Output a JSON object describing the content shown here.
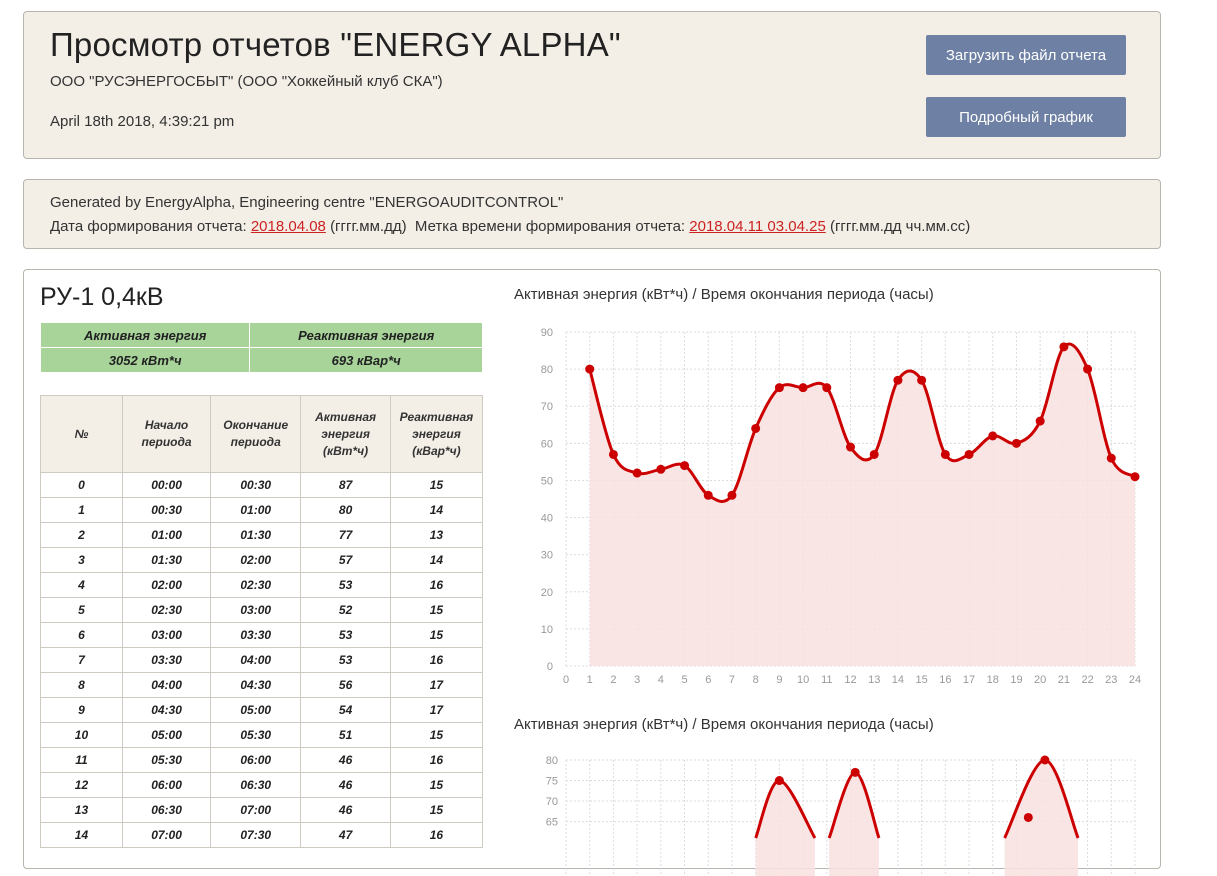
{
  "header": {
    "title": "Просмотр отчетов \"ENERGY ALPHA\"",
    "org": "ООО \"РУСЭНЕРГОСБЫТ\" (ООО \"Хоккейный клуб СКА\")",
    "date": "April 18th 2018, 4:39:21 pm",
    "upload_label": "Загрузить файл отчета",
    "detail_label": "Подробный график"
  },
  "info": {
    "generated": "Generated by EnergyAlpha, Engineering centre \"ENERGOAUDITCONTROL\"",
    "date_label": "Дата формирования отчета:",
    "date_value": "2018.04.08",
    "date_format": "(гггг.мм.дд)",
    "timestamp_label": "Метка времени формирования отчета:",
    "timestamp_value": "2018.04.11 03.04.25",
    "timestamp_format": "(гггг.мм.дд чч.мм.сс)"
  },
  "section": {
    "title": "РУ-1 0,4кВ",
    "summary": {
      "active_label": "Активная энергия",
      "reactive_label": "Реактивная энергия",
      "active_value": "3052 кВт*ч",
      "reactive_value": "693 кВар*ч"
    }
  },
  "table": {
    "headers": [
      "№",
      "Начало периода",
      "Окончание периода",
      "Активная энергия (кВт*ч)",
      "Реактивная энергия (кВар*ч)"
    ],
    "rows": [
      [
        "0",
        "00:00",
        "00:30",
        "87",
        "15"
      ],
      [
        "1",
        "00:30",
        "01:00",
        "80",
        "14"
      ],
      [
        "2",
        "01:00",
        "01:30",
        "77",
        "13"
      ],
      [
        "3",
        "01:30",
        "02:00",
        "57",
        "14"
      ],
      [
        "4",
        "02:00",
        "02:30",
        "53",
        "16"
      ],
      [
        "5",
        "02:30",
        "03:00",
        "52",
        "15"
      ],
      [
        "6",
        "03:00",
        "03:30",
        "53",
        "15"
      ],
      [
        "7",
        "03:30",
        "04:00",
        "53",
        "16"
      ],
      [
        "8",
        "04:00",
        "04:30",
        "56",
        "17"
      ],
      [
        "9",
        "04:30",
        "05:00",
        "54",
        "17"
      ],
      [
        "10",
        "05:00",
        "05:30",
        "51",
        "15"
      ],
      [
        "11",
        "05:30",
        "06:00",
        "46",
        "16"
      ],
      [
        "12",
        "06:00",
        "06:30",
        "46",
        "15"
      ],
      [
        "13",
        "06:30",
        "07:00",
        "46",
        "15"
      ],
      [
        "14",
        "07:00",
        "07:30",
        "47",
        "16"
      ]
    ]
  },
  "colors": {
    "line": "#cc0000",
    "fill": "#f9e0e0",
    "button": "#6e80a4",
    "summary_bg": "#a8d49a",
    "link": "#cc2222"
  },
  "chart_data": [
    {
      "type": "area",
      "title": "Активная энергия (кВт*ч) / Время окончания периода (часы)",
      "x": [
        1,
        2,
        3,
        4,
        5,
        6,
        7,
        8,
        9,
        10,
        11,
        12,
        13,
        14,
        15,
        16,
        17,
        18,
        19,
        20,
        21,
        22,
        23,
        24
      ],
      "values": [
        80,
        57,
        52,
        53,
        54,
        46,
        46,
        64,
        75,
        75,
        75,
        59,
        57,
        77,
        77,
        57,
        57,
        62,
        60,
        66,
        86,
        80,
        56,
        51
      ],
      "xlim": [
        0,
        24
      ],
      "ylim": [
        0,
        90
      ],
      "yticks": [
        0,
        10,
        20,
        30,
        40,
        50,
        60,
        70,
        80,
        90
      ],
      "xticks": [
        0,
        1,
        2,
        3,
        4,
        5,
        6,
        7,
        8,
        9,
        10,
        11,
        12,
        13,
        14,
        15,
        16,
        17,
        18,
        19,
        20,
        21,
        22,
        23,
        24
      ],
      "grid": true
    },
    {
      "type": "area",
      "title": "Активная энергия (кВт*ч) / Время окончания периода (часы)",
      "x": [
        8,
        9,
        11,
        12,
        18,
        19
      ],
      "values": [
        61,
        75,
        61,
        77,
        66,
        80
      ],
      "ylim": [
        61,
        80
      ],
      "yticks": [
        65,
        70,
        75,
        80
      ],
      "grid": true
    }
  ]
}
